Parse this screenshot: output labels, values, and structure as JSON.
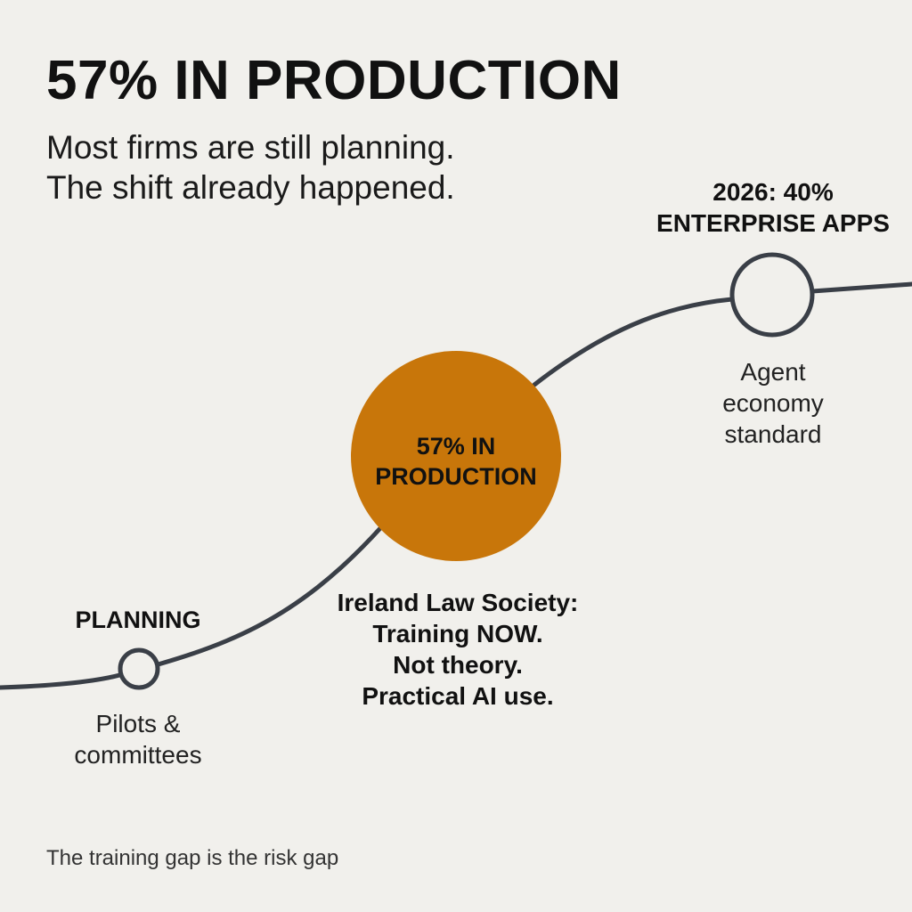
{
  "headline": "57% IN PRODUCTION",
  "subheadline": [
    "Most firms are still planning.",
    "The shift already happened."
  ],
  "colors": {
    "background": "#f1f0ec",
    "line": "#3a3f47",
    "accent": "#c8760a",
    "text": "#111111"
  },
  "stages": {
    "planning": {
      "title": "PLANNING",
      "description": [
        "Pilots &",
        "committees"
      ]
    },
    "production": {
      "circle_label": [
        "57% IN",
        "PRODUCTION"
      ],
      "note": [
        "Ireland Law Society:",
        "Training NOW.",
        "Not theory.",
        "Practical AI use."
      ]
    },
    "future": {
      "title": [
        "2026: 40%",
        "ENTERPRISE APPS"
      ],
      "description": [
        "Agent",
        "economy",
        "standard"
      ]
    }
  },
  "footer": "The training gap is the risk gap"
}
